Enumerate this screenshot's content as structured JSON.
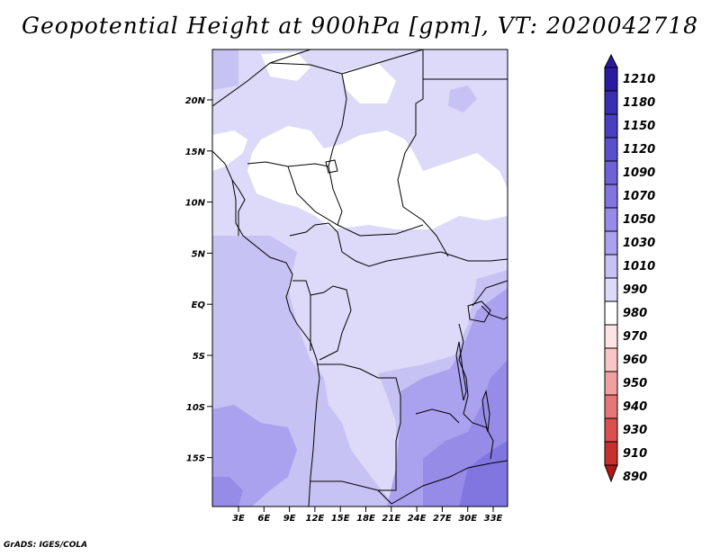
{
  "title": "Geopotential Height at 900hPa [gpm], VT: 2020042718",
  "footer": "GrADS: IGES/COLA",
  "lat_labels": [
    "20N",
    "15N",
    "10N",
    "5N",
    "EQ",
    "5S",
    "10S",
    "15S"
  ],
  "lon_labels": [
    "3E",
    "6E",
    "9E",
    "12E",
    "15E",
    "18E",
    "21E",
    "24E",
    "27E",
    "30E",
    "33E"
  ],
  "colorbar": {
    "levels": [
      "1210",
      "1180",
      "1150",
      "1120",
      "1090",
      "1070",
      "1050",
      "1030",
      "1010",
      "990",
      "980",
      "970",
      "960",
      "950",
      "940",
      "930",
      "910",
      "890"
    ],
    "colors": [
      "#2a1ba0",
      "#3a2fb0",
      "#4a3fc0",
      "#5a50cc",
      "#6d62d6",
      "#8176e0",
      "#968ce8",
      "#aaa2ee",
      "#c6c2f4",
      "#dcdaf8",
      "#ffffff",
      "#fde4e4",
      "#f8c6c6",
      "#f0a0a0",
      "#e47878",
      "#d85050",
      "#c83030",
      "#b01818"
    ]
  },
  "colors": {
    "level_990_1010": "#ffffff",
    "level_1010_1030": "#dcdaf8",
    "level_1030_1050": "#c6c2f4",
    "level_1050_1070": "#aaa2ee",
    "level_1070_1090": "#968ce8",
    "level_1090_1120": "#8176e0"
  }
}
